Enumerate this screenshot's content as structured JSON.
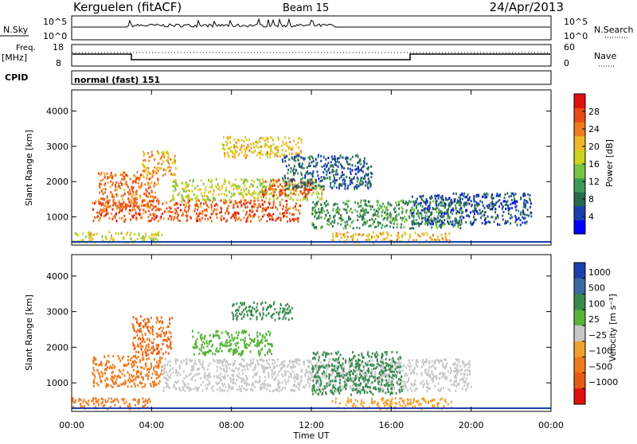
{
  "header": {
    "station": "Kerguelen (fitACF)",
    "beam": "Beam 15",
    "date": "24/Apr/2013"
  },
  "noise_panel": {
    "left_label": "N.Sky",
    "left_ticks": [
      "10^5",
      "10^0"
    ],
    "right_ticks": [
      "10^5",
      "10^0"
    ],
    "right_label": "N.Search"
  },
  "freq_panel": {
    "left_label_1": "Freq.",
    "left_label_2": "[MHz]",
    "left_ticks": [
      "18",
      "8"
    ],
    "right_ticks": [
      "60",
      "0"
    ],
    "right_label": "Nave"
  },
  "cpid_panel": {
    "label": "CPID",
    "mode": "normal (fast) 151"
  },
  "time_axis": {
    "title": "Time UT",
    "ticks": [
      "00:00",
      "04:00",
      "08:00",
      "12:00",
      "16:00",
      "20:00",
      "00:00"
    ]
  },
  "colors": {
    "axis": "#000000",
    "background": "#ffffff",
    "power_scale": [
      "#0000ff",
      "#1c3fae",
      "#2a6a4e",
      "#3e9a5a",
      "#79c442",
      "#c8d41e",
      "#f0b828",
      "#f07a1e",
      "#ea4a14",
      "#e01010"
    ],
    "velocity_scale": [
      "#1c3fae",
      "#3a6aa0",
      "#3a8a50",
      "#5ab43c",
      "#c8c8c8",
      "#f0a030",
      "#f07a1e",
      "#e85a14",
      "#e01010"
    ]
  },
  "chart_data": [
    {
      "type": "heatmap",
      "name": "power",
      "ylabel": "Slant Range [km]",
      "yticks": [
        "1000",
        "2000",
        "3000",
        "4000"
      ],
      "ylim": [
        200,
        4600
      ],
      "xlim": [
        "00:00",
        "24:00"
      ],
      "colorbar": {
        "label": "Power [dB]",
        "ticks": [
          "4",
          "8",
          "12",
          "16",
          "20",
          "24",
          "28"
        ],
        "range": [
          0,
          32
        ]
      },
      "echo_regions": [
        {
          "t0": 1.0,
          "t1": 11.5,
          "r0": 900,
          "r1": 1500,
          "value": 26
        },
        {
          "t0": 1.3,
          "t1": 4.3,
          "r0": 1300,
          "r1": 2300,
          "value": 25
        },
        {
          "t0": 3.5,
          "t1": 5.2,
          "r0": 2200,
          "r1": 2900,
          "value": 22
        },
        {
          "t0": 5.0,
          "t1": 12.5,
          "r0": 1500,
          "r1": 2100,
          "value": 17
        },
        {
          "t0": 9.5,
          "t1": 12.0,
          "r0": 1600,
          "r1": 2100,
          "value": 27
        },
        {
          "t0": 7.5,
          "t1": 11.5,
          "r0": 2700,
          "r1": 3300,
          "value": 20
        },
        {
          "t0": 10.5,
          "t1": 15.0,
          "r0": 1800,
          "r1": 2800,
          "value": 7
        },
        {
          "t0": 12.0,
          "t1": 19.5,
          "r0": 700,
          "r1": 1500,
          "value": 11
        },
        {
          "t0": 17.0,
          "t1": 23.0,
          "r0": 800,
          "r1": 1700,
          "value": 6
        },
        {
          "t0": 0.0,
          "t1": 4.5,
          "r0": 300,
          "r1": 600,
          "value": 18
        },
        {
          "t0": 13.0,
          "t1": 19.0,
          "r0": 300,
          "r1": 600,
          "value": 21
        }
      ]
    },
    {
      "type": "heatmap",
      "name": "velocity",
      "ylabel": "Slant Range [km]",
      "yticks": [
        "1000",
        "2000",
        "3000",
        "4000"
      ],
      "ylim": [
        200,
        4600
      ],
      "xlim": [
        "00:00",
        "24:00"
      ],
      "colorbar": {
        "label": "Velocity [m s⁻¹]",
        "ticks": [
          "1000",
          "500",
          "100",
          "25",
          "−25",
          "−100",
          "−500",
          "−1000"
        ]
      },
      "echo_regions": [
        {
          "t0": 1.0,
          "t1": 4.5,
          "r0": 900,
          "r1": 1800,
          "value": -300
        },
        {
          "t0": 3.0,
          "t1": 5.0,
          "r0": 1800,
          "r1": 2900,
          "value": -500
        },
        {
          "t0": 4.5,
          "t1": 20.0,
          "r0": 800,
          "r1": 1700,
          "value": 0
        },
        {
          "t0": 6.0,
          "t1": 10.0,
          "r0": 1800,
          "r1": 2500,
          "value": 60
        },
        {
          "t0": 8.0,
          "t1": 11.0,
          "r0": 2800,
          "r1": 3300,
          "value": 120
        },
        {
          "t0": 12.0,
          "t1": 16.5,
          "r0": 700,
          "r1": 1900,
          "value": 250
        },
        {
          "t0": 0.0,
          "t1": 4.0,
          "r0": 300,
          "r1": 600,
          "value": -150
        },
        {
          "t0": 13.0,
          "t1": 19.0,
          "r0": 300,
          "r1": 600,
          "value": -80
        }
      ]
    }
  ]
}
